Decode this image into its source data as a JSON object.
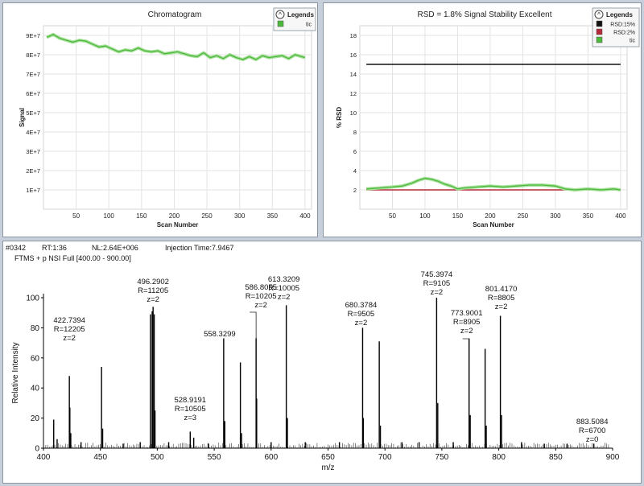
{
  "chart_data": [
    {
      "type": "line",
      "title": "Chromatogram",
      "xlabel": "Scan Number",
      "ylabel": "Signal",
      "xlim": [
        0,
        410
      ],
      "ylim": [
        0,
        95000000
      ],
      "xticks": [
        "50",
        "100",
        "150",
        "200",
        "250",
        "300",
        "350",
        "400"
      ],
      "yticks": [
        "1E+7",
        "2E+7",
        "3E+7",
        "4E+7",
        "5E+7",
        "6E+7",
        "7E+7",
        "8E+7",
        "9E+7"
      ],
      "grid": true,
      "legend": {
        "title": "Legends",
        "position": "top-right"
      },
      "series": [
        {
          "name": "tic",
          "color": "#4cb83c",
          "x": [
            5,
            15,
            25,
            35,
            45,
            55,
            65,
            75,
            85,
            95,
            105,
            115,
            125,
            135,
            145,
            155,
            165,
            175,
            185,
            195,
            205,
            215,
            225,
            235,
            245,
            255,
            265,
            275,
            285,
            295,
            305,
            315,
            325,
            335,
            345,
            355,
            365,
            375,
            385,
            395,
            400
          ],
          "y": [
            89000000,
            90500000,
            88500000,
            87500000,
            86500000,
            87500000,
            87000000,
            85500000,
            84000000,
            84500000,
            83000000,
            81500000,
            82500000,
            82000000,
            83500000,
            82000000,
            81500000,
            82000000,
            80500000,
            81000000,
            81500000,
            80500000,
            79500000,
            79000000,
            81000000,
            78500000,
            79500000,
            78000000,
            80000000,
            78500000,
            77500000,
            79000000,
            77500000,
            79500000,
            78500000,
            79000000,
            79500000,
            78000000,
            80000000,
            79000000,
            78500000
          ]
        }
      ]
    },
    {
      "type": "line",
      "title": "RSD = 1.8% Signal Stability Excellent",
      "xlabel": "Scan Number",
      "ylabel": "% RSD",
      "xlim": [
        0,
        410
      ],
      "ylim": [
        0,
        19
      ],
      "xticks": [
        "50",
        "100",
        "150",
        "200",
        "250",
        "300",
        "350",
        "400"
      ],
      "yticks": [
        "2",
        "4",
        "6",
        "8",
        "10",
        "12",
        "14",
        "16",
        "18"
      ],
      "grid": true,
      "legend": {
        "title": "Legends",
        "position": "top-right"
      },
      "series": [
        {
          "name": "RSD:15%",
          "color": "#111111",
          "x": [
            10,
            400
          ],
          "y": [
            15,
            15
          ]
        },
        {
          "name": "RSD:2%",
          "color": "#b52a3a",
          "x": [
            10,
            400
          ],
          "y": [
            2,
            2
          ]
        },
        {
          "name": "tic",
          "color": "#4cb83c",
          "x": [
            10,
            30,
            50,
            65,
            80,
            90,
            100,
            110,
            120,
            130,
            140,
            150,
            160,
            180,
            200,
            220,
            240,
            260,
            280,
            300,
            315,
            330,
            350,
            370,
            390,
            400
          ],
          "y": [
            2.1,
            2.2,
            2.3,
            2.4,
            2.7,
            3.0,
            3.2,
            3.1,
            2.9,
            2.6,
            2.4,
            2.1,
            2.2,
            2.3,
            2.4,
            2.3,
            2.4,
            2.5,
            2.5,
            2.4,
            2.1,
            2.0,
            2.1,
            2.0,
            2.1,
            2.0
          ]
        }
      ]
    },
    {
      "type": "bar",
      "title": "",
      "header": {
        "scan": "#0342",
        "rt": "RT:1:36",
        "nl": "NL:2.64E+006",
        "injection_time": "Injection Time:7.9467",
        "filter": "FTMS + p NSI Full [400.00 - 900.00]"
      },
      "xlabel": "m/z",
      "ylabel": "Relative Intensity",
      "xlim": [
        400,
        900
      ],
      "ylim": [
        0,
        100
      ],
      "xticks": [
        "400",
        "450",
        "500",
        "550",
        "600",
        "650",
        "700",
        "750",
        "800",
        "850",
        "900"
      ],
      "yticks": [
        "0",
        "20",
        "40",
        "60",
        "80",
        "100"
      ],
      "peaks": [
        {
          "mz": 409,
          "intensity": 19
        },
        {
          "mz": 412,
          "intensity": 6
        },
        {
          "mz": 422.7394,
          "intensity": 48
        },
        {
          "mz": 423.2,
          "intensity": 27
        },
        {
          "mz": 424,
          "intensity": 10
        },
        {
          "mz": 433,
          "intensity": 4
        },
        {
          "mz": 451,
          "intensity": 54
        },
        {
          "mz": 452,
          "intensity": 13
        },
        {
          "mz": 470,
          "intensity": 3
        },
        {
          "mz": 485,
          "intensity": 4
        },
        {
          "mz": 494,
          "intensity": 89
        },
        {
          "mz": 495.5,
          "intensity": 91
        },
        {
          "mz": 496.2902,
          "intensity": 94
        },
        {
          "mz": 497.3,
          "intensity": 89
        },
        {
          "mz": 498,
          "intensity": 25
        },
        {
          "mz": 510,
          "intensity": 4
        },
        {
          "mz": 528.9191,
          "intensity": 11
        },
        {
          "mz": 532,
          "intensity": 7
        },
        {
          "mz": 545,
          "intensity": 3
        },
        {
          "mz": 558.3299,
          "intensity": 73
        },
        {
          "mz": 559.3,
          "intensity": 18
        },
        {
          "mz": 573,
          "intensity": 57
        },
        {
          "mz": 574,
          "intensity": 10
        },
        {
          "mz": 586.8055,
          "intensity": 73
        },
        {
          "mz": 587.3,
          "intensity": 33
        },
        {
          "mz": 600,
          "intensity": 4
        },
        {
          "mz": 613.3209,
          "intensity": 95
        },
        {
          "mz": 614.3,
          "intensity": 20
        },
        {
          "mz": 630,
          "intensity": 4
        },
        {
          "mz": 660,
          "intensity": 4
        },
        {
          "mz": 680.3784,
          "intensity": 80
        },
        {
          "mz": 681,
          "intensity": 20
        },
        {
          "mz": 695,
          "intensity": 71
        },
        {
          "mz": 696,
          "intensity": 15
        },
        {
          "mz": 715,
          "intensity": 4
        },
        {
          "mz": 730,
          "intensity": 4
        },
        {
          "mz": 745.3974,
          "intensity": 100
        },
        {
          "mz": 746.4,
          "intensity": 30
        },
        {
          "mz": 760,
          "intensity": 4
        },
        {
          "mz": 773.9001,
          "intensity": 73
        },
        {
          "mz": 774.9,
          "intensity": 22
        },
        {
          "mz": 788,
          "intensity": 66
        },
        {
          "mz": 789,
          "intensity": 15
        },
        {
          "mz": 801.417,
          "intensity": 88
        },
        {
          "mz": 802.4,
          "intensity": 22
        },
        {
          "mz": 820,
          "intensity": 4
        },
        {
          "mz": 840,
          "intensity": 3
        },
        {
          "mz": 860,
          "intensity": 3
        },
        {
          "mz": 883.5084,
          "intensity": 3
        }
      ],
      "annotations": [
        {
          "mz": 422.7394,
          "lines": [
            "422.7394",
            "R=12205",
            "z=2"
          ]
        },
        {
          "mz": 496.2902,
          "lines": [
            "496.2902",
            "R=11205",
            "z=2"
          ]
        },
        {
          "mz": 528.9191,
          "lines": [
            "528.9191",
            "R=10505",
            "z=3"
          ]
        },
        {
          "mz": 558.3299,
          "lines": [
            "558.3299"
          ]
        },
        {
          "mz": 586.8055,
          "lines": [
            "586.8055",
            "R=10205",
            "z=2"
          ]
        },
        {
          "mz": 613.3209,
          "lines": [
            "613.3209",
            "R=10005",
            "z=2"
          ]
        },
        {
          "mz": 680.3784,
          "lines": [
            "680.3784",
            "R=9505",
            "z=2"
          ]
        },
        {
          "mz": 745.3974,
          "lines": [
            "745.3974",
            "R=9105",
            "z=2"
          ]
        },
        {
          "mz": 773.9001,
          "lines": [
            "773.9001",
            "R=8905",
            "z=2"
          ]
        },
        {
          "mz": 801.417,
          "lines": [
            "801.4170",
            "R=8805",
            "z=2"
          ]
        },
        {
          "mz": 883.5084,
          "lines": [
            "883.5084",
            "R=6700",
            "z=0"
          ]
        }
      ]
    }
  ]
}
